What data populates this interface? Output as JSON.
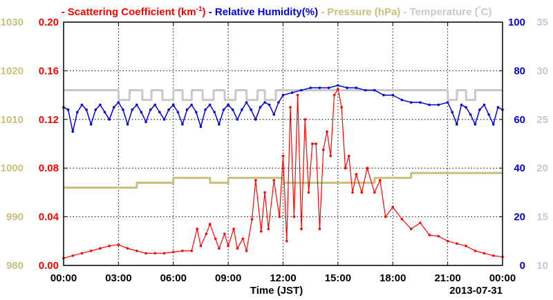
{
  "chart_data": {
    "type": "line",
    "legend": [
      {
        "text": "Scattering Coefficient (km",
        "sup": "-1",
        "tail": ")",
        "color": "#ff0000"
      },
      {
        "text": "Relative Humidity(%)",
        "color": "#0000dd"
      },
      {
        "text": "Pressure (hPa)",
        "color": "#c8bf7a"
      },
      {
        "text": "Temperature (",
        "sup": "°",
        "tail": "C)",
        "color": "#c8c8c8"
      }
    ],
    "xlabel": "Time (JST)",
    "date_label": "2013-07-31",
    "x_ticks": [
      "00:00",
      "03:00",
      "06:00",
      "09:00",
      "12:00",
      "15:00",
      "18:00",
      "21:00",
      "00:00"
    ],
    "xlim_hours": [
      0,
      24
    ],
    "axes": {
      "pressure": {
        "ticks": [
          "980",
          "990",
          "1000",
          "1010",
          "1020",
          "1030"
        ],
        "ylim": [
          980,
          1030
        ],
        "color": "#c8bf7a"
      },
      "scattering": {
        "ticks": [
          "0.00",
          "0.04",
          "0.08",
          "0.12",
          "0.16",
          "0.20"
        ],
        "ylim": [
          0,
          0.2
        ],
        "color": "#ff0000"
      },
      "humidity": {
        "ticks": [
          "0",
          "20",
          "40",
          "60",
          "80",
          "100"
        ],
        "ylim": [
          0,
          100
        ],
        "color": "#0000dd"
      },
      "temperature": {
        "ticks": [
          "10",
          "15",
          "20",
          "25",
          "30",
          "35"
        ],
        "ylim": [
          10,
          35
        ],
        "color": "#c8c8c8"
      }
    },
    "grid": true,
    "series": [
      {
        "name": "Scattering Coefficient",
        "axis": "scattering",
        "color": "#ff0000",
        "x": [
          0,
          0.5,
          1,
          1.5,
          2,
          2.5,
          3,
          3.5,
          4,
          4.5,
          5,
          5.5,
          6,
          6.5,
          7,
          7.3,
          7.5,
          7.8,
          8,
          8.3,
          8.5,
          8.8,
          9,
          9.3,
          9.5,
          9.8,
          10,
          10.3,
          10.5,
          10.8,
          11,
          11.2,
          11.5,
          11.8,
          12,
          12.2,
          12.4,
          12.6,
          12.8,
          13,
          13.2,
          13.4,
          13.6,
          13.8,
          14,
          14.2,
          14.4,
          14.6,
          14.8,
          15,
          15.2,
          15.4,
          15.6,
          15.8,
          16,
          16.3,
          16.6,
          17,
          17.3,
          17.6,
          18,
          18.5,
          19,
          19.5,
          20,
          20.5,
          21,
          21.5,
          22,
          22.5,
          23,
          23.5,
          24
        ],
        "values": [
          0.006,
          0.008,
          0.01,
          0.012,
          0.014,
          0.016,
          0.017,
          0.014,
          0.012,
          0.01,
          0.01,
          0.01,
          0.011,
          0.012,
          0.012,
          0.03,
          0.016,
          0.026,
          0.034,
          0.022,
          0.014,
          0.026,
          0.016,
          0.03,
          0.014,
          0.022,
          0.012,
          0.038,
          0.07,
          0.028,
          0.06,
          0.03,
          0.07,
          0.04,
          0.09,
          0.02,
          0.13,
          0.04,
          0.14,
          0.03,
          0.12,
          0.06,
          0.1,
          0.1,
          0.03,
          0.095,
          0.11,
          0.09,
          0.14,
          0.145,
          0.13,
          0.08,
          0.09,
          0.06,
          0.075,
          0.06,
          0.08,
          0.06,
          0.07,
          0.04,
          0.048,
          0.038,
          0.03,
          0.035,
          0.025,
          0.024,
          0.02,
          0.018,
          0.016,
          0.012,
          0.01,
          0.008,
          0.007
        ]
      },
      {
        "name": "Relative Humidity(%)",
        "axis": "humidity",
        "color": "#0000dd",
        "x": [
          0,
          0.25,
          0.5,
          0.75,
          1,
          1.25,
          1.5,
          1.75,
          2,
          2.25,
          2.5,
          2.75,
          3,
          3.25,
          3.5,
          3.75,
          4,
          4.25,
          4.5,
          4.75,
          5,
          5.25,
          5.5,
          5.75,
          6,
          6.25,
          6.5,
          6.75,
          7,
          7.25,
          7.5,
          7.75,
          8,
          8.25,
          8.5,
          8.75,
          9,
          9.25,
          9.5,
          9.75,
          10,
          10.25,
          10.5,
          10.75,
          11,
          11.25,
          11.5,
          11.75,
          12,
          12.5,
          13,
          13.5,
          14,
          14.5,
          15,
          15.5,
          16,
          16.5,
          17,
          17.5,
          18,
          18.5,
          19,
          19.5,
          20,
          20.5,
          21,
          21.25,
          21.5,
          21.75,
          22,
          22.25,
          22.5,
          22.75,
          23,
          23.25,
          23.5,
          23.75,
          24
        ],
        "values": [
          65,
          64,
          55,
          63,
          66,
          64,
          58,
          64,
          66,
          63,
          60,
          65,
          67,
          64,
          58,
          64,
          66,
          63,
          59,
          64,
          66,
          63,
          60,
          64,
          66,
          63,
          58,
          64,
          66,
          63,
          57,
          64,
          66,
          63,
          58,
          64,
          66,
          64,
          60,
          64,
          67,
          64,
          60,
          65,
          67,
          66,
          62,
          67,
          70,
          71,
          72,
          73,
          73,
          73,
          74,
          73,
          73,
          72,
          72,
          70,
          70,
          68,
          67,
          67,
          66,
          66,
          67,
          63,
          58,
          66,
          65,
          62,
          58,
          64,
          66,
          62,
          58,
          65,
          64
        ]
      },
      {
        "name": "Pressure (hPa)",
        "axis": "pressure",
        "color": "#c8bf7a",
        "x": [
          0,
          4,
          4.01,
          6,
          6.01,
          8,
          8.01,
          9,
          9.01,
          12,
          12.01,
          17,
          17.01,
          19,
          19.01,
          24
        ],
        "values": [
          996,
          996,
          997,
          997,
          998,
          998,
          997,
          997,
          998,
          998,
          997,
          997,
          998,
          998,
          999,
          999
        ]
      },
      {
        "name": "Temperature",
        "axis": "temperature",
        "color": "#c8c8c8",
        "x": [
          0,
          3,
          3.01,
          3.6,
          3.61,
          4.3,
          4.31,
          4.8,
          4.81,
          5.4,
          5.41,
          6,
          6.01,
          6.5,
          6.51,
          7,
          7.01,
          7.6,
          7.61,
          8.2,
          8.21,
          8.8,
          8.81,
          9.4,
          9.41,
          10,
          10.01,
          10.6,
          10.61,
          11,
          11.01,
          11.6,
          11.61,
          12.2,
          12.21,
          21,
          21.01,
          21.5,
          21.51,
          22,
          22.01,
          22.5,
          22.51,
          24
        ],
        "values": [
          28,
          28,
          27,
          27,
          28,
          28,
          27,
          27,
          28,
          28,
          27,
          27,
          28,
          28,
          27,
          27,
          28,
          28,
          27,
          27,
          28,
          28,
          27,
          27,
          28,
          28,
          27,
          27,
          28,
          28,
          27,
          27,
          28,
          28,
          28,
          28,
          27,
          27,
          28,
          28,
          27,
          27,
          28,
          28
        ]
      }
    ]
  }
}
